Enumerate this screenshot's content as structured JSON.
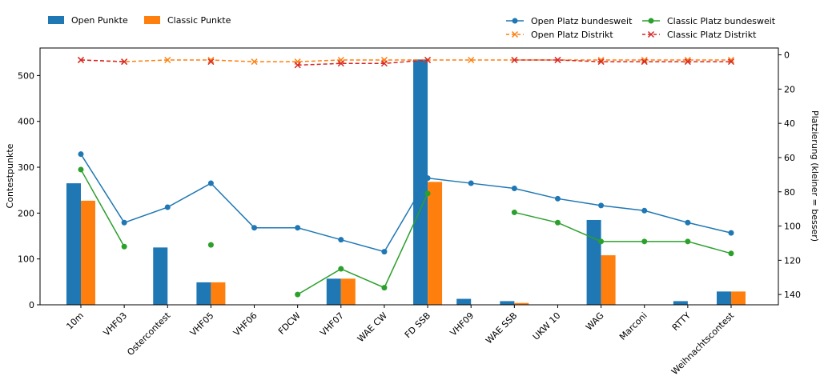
{
  "chart_data": {
    "type": "bar",
    "title": "",
    "categories": [
      "10m",
      "VHF03",
      "Ostercontest",
      "VHF05",
      "VHF06",
      "FDCW",
      "VHF07",
      "WAE CW",
      "FD SSB",
      "VHF09",
      "WAE SSB",
      "UKW 10",
      "WAG",
      "Marconi",
      "RTTY",
      "Weihnachtscontest"
    ],
    "xlabel": "",
    "ylabel": "Contestpunkte",
    "ylim": [
      0,
      560
    ],
    "yticks": [
      0,
      100,
      200,
      300,
      400,
      500
    ],
    "y2label": "Platzierung (kleiner = besser)",
    "y2lim": [
      -4,
      146
    ],
    "y2ticks": [
      0,
      20,
      40,
      60,
      80,
      100,
      120,
      140
    ],
    "y2_inverted": true,
    "colors": {
      "open_bar": "#1f77b4",
      "classic_bar": "#ff7f0e",
      "open_rank": "#1f77b4",
      "open_district": "#ff7f0e",
      "classic_rank": "#2ca02c",
      "classic_district": "#d62728"
    },
    "bar_series": [
      {
        "name": "Open Punkte",
        "color": "#1f77b4",
        "values": [
          265,
          0,
          125,
          49,
          0,
          0,
          57,
          0,
          535,
          13,
          8,
          0,
          185,
          0,
          8,
          29
        ]
      },
      {
        "name": "Classic Punkte",
        "color": "#ff7f0e",
        "values": [
          227,
          0,
          0,
          49,
          0,
          0,
          57,
          0,
          268,
          0,
          4,
          0,
          108,
          0,
          0,
          29
        ]
      }
    ],
    "line_series": [
      {
        "name": "Open Platz bundesweit",
        "color": "#1f77b4",
        "style": "solid",
        "marker": "circle",
        "values": [
          58,
          98,
          89,
          75,
          101,
          101,
          108,
          115,
          72,
          75,
          78,
          84,
          88,
          91,
          98,
          104
        ]
      },
      {
        "name": "Open Platz Distrikt",
        "color": "#ff7f0e",
        "style": "dashed",
        "marker": "x",
        "values": [
          3,
          4,
          3,
          3,
          4,
          4,
          3,
          3,
          3,
          3,
          3,
          3,
          3,
          3,
          3,
          3
        ]
      },
      {
        "name": "Classic Platz bundesweit",
        "color": "#2ca02c",
        "style": "solid",
        "marker": "circle",
        "values": [
          67,
          112,
          null,
          111,
          null,
          140,
          125,
          136,
          81,
          null,
          92,
          98,
          109,
          109,
          109,
          116
        ]
      },
      {
        "name": "Classic Platz Distrikt",
        "color": "#d62728",
        "style": "dashed",
        "marker": "x",
        "values": [
          3,
          4,
          null,
          4,
          null,
          6,
          5,
          5,
          3,
          null,
          3,
          3,
          4,
          4,
          4,
          4
        ]
      }
    ],
    "legend_left": [
      "Open Punkte",
      "Classic Punkte"
    ],
    "legend_right": [
      "Open Platz bundesweit",
      "Classic Platz bundesweit",
      "Open Platz Distrikt",
      "Classic Platz Distrikt"
    ]
  }
}
